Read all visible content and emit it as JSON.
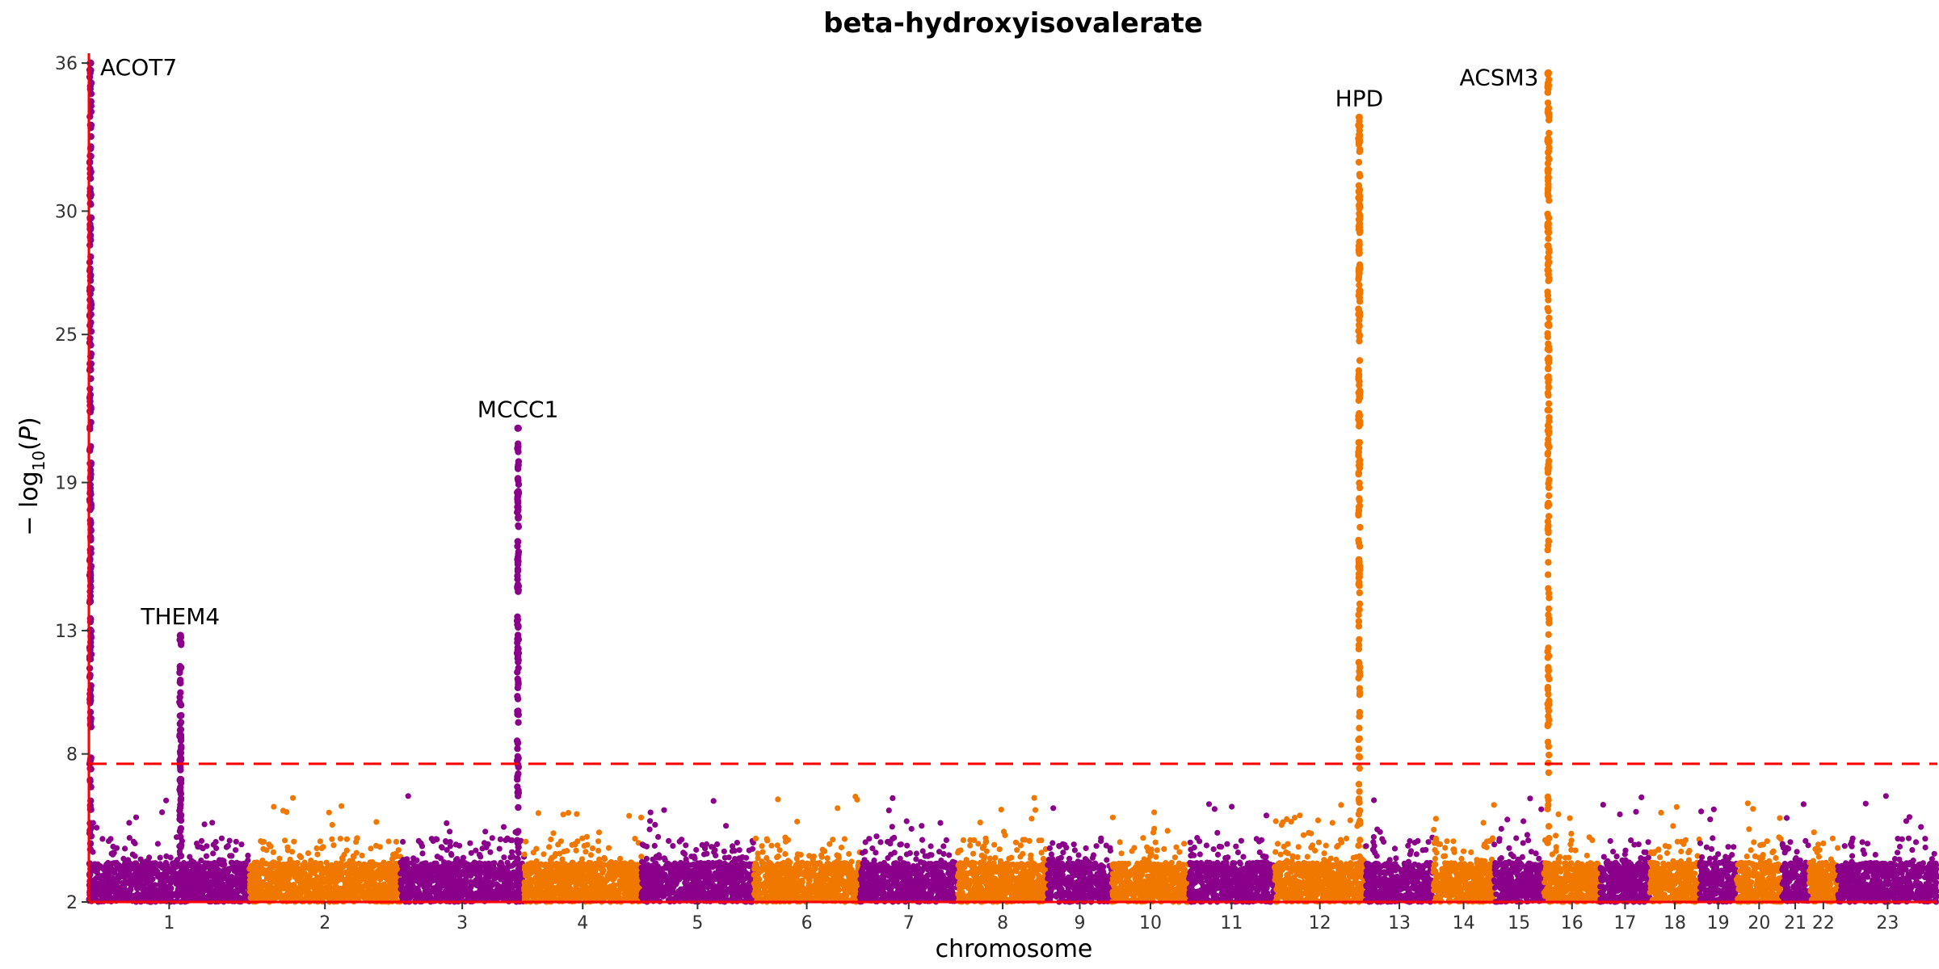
{
  "chart_data": {
    "type": "scatter",
    "subtype": "manhattan",
    "title": "beta-hydroxyisovalerate",
    "xlabel": "chromosome",
    "ylabel_parts": [
      "− log",
      "10",
      "(",
      "P",
      ")"
    ],
    "ylim": [
      2,
      36.2
    ],
    "yticks": [
      2,
      8,
      13,
      19,
      25,
      30,
      36
    ],
    "significance_threshold": 7.6,
    "colors": {
      "odd": "#8b008b",
      "even": "#f07800",
      "threshold": "#ff0000",
      "axis": "#ff0000"
    },
    "chromosomes": [
      {
        "label": "1",
        "size": 1.0
      },
      {
        "label": "2",
        "size": 0.94
      },
      {
        "label": "3",
        "size": 0.77
      },
      {
        "label": "4",
        "size": 0.73
      },
      {
        "label": "5",
        "size": 0.7
      },
      {
        "label": "6",
        "size": 0.66
      },
      {
        "label": "7",
        "size": 0.61
      },
      {
        "label": "8",
        "size": 0.56
      },
      {
        "label": "9",
        "size": 0.4
      },
      {
        "label": "10",
        "size": 0.48
      },
      {
        "label": "11",
        "size": 0.53
      },
      {
        "label": "12",
        "size": 0.57
      },
      {
        "label": "13",
        "size": 0.42
      },
      {
        "label": "14",
        "size": 0.38
      },
      {
        "label": "15",
        "size": 0.31
      },
      {
        "label": "16",
        "size": 0.35
      },
      {
        "label": "17",
        "size": 0.31
      },
      {
        "label": "18",
        "size": 0.31
      },
      {
        "label": "19",
        "size": 0.23
      },
      {
        "label": "20",
        "size": 0.28
      },
      {
        "label": "21",
        "size": 0.17
      },
      {
        "label": "22",
        "size": 0.18
      },
      {
        "label": "23",
        "size": 0.62
      }
    ],
    "peaks": [
      {
        "gene": "ACOT7",
        "chrom": "1",
        "pos": 0.01,
        "max": 36.0,
        "label_side": "right"
      },
      {
        "gene": "THEM4",
        "chrom": "1",
        "pos": 0.57,
        "max": 12.8,
        "label_side": "center"
      },
      {
        "gene": "MCCC1",
        "chrom": "3",
        "pos": 0.95,
        "max": 21.2,
        "label_side": "center"
      },
      {
        "gene": "HPD",
        "chrom": "12",
        "pos": 0.93,
        "max": 33.8,
        "label_side": "center"
      },
      {
        "gene": "ACSM3",
        "chrom": "16",
        "pos": 0.08,
        "max": 35.6,
        "label_side": "left"
      }
    ]
  }
}
